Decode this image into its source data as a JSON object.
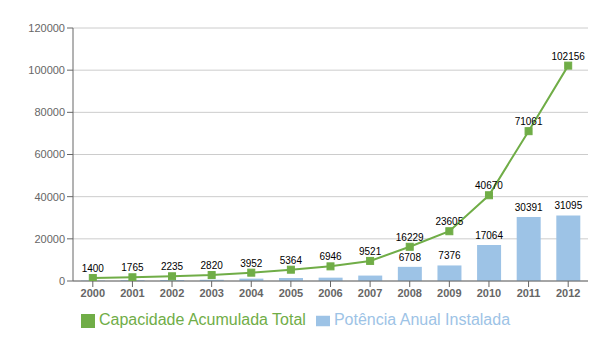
{
  "chart_data": {
    "type": "bar",
    "categories": [
      "2000",
      "2001",
      "2002",
      "2003",
      "2004",
      "2005",
      "2006",
      "2007",
      "2008",
      "2009",
      "2010",
      "2011",
      "2012"
    ],
    "series": [
      {
        "name": "Potência Anual Instalada",
        "type": "bar",
        "color": "#9DC3E6",
        "values": [
          200,
          365,
          470,
          585,
          1132,
          1412,
          1582,
          2575,
          6708,
          7376,
          17064,
          30391,
          31095
        ],
        "value_labels": [
          null,
          null,
          null,
          null,
          null,
          null,
          null,
          null,
          "6708",
          "7376",
          "17064",
          "30391",
          "31095"
        ]
      },
      {
        "name": "Capacidade Acumulada Total",
        "type": "line",
        "color": "#70AD47",
        "marker": "square",
        "values": [
          1400,
          1765,
          2235,
          2820,
          3952,
          5364,
          6946,
          9521,
          16229,
          23605,
          40670,
          71061,
          102156
        ]
      }
    ],
    "ylim": [
      0,
      120000
    ],
    "yticks": [
      0,
      20000,
      40000,
      60000,
      80000,
      100000,
      120000
    ],
    "grid": true,
    "legend": "bottom",
    "data_labels": true
  }
}
